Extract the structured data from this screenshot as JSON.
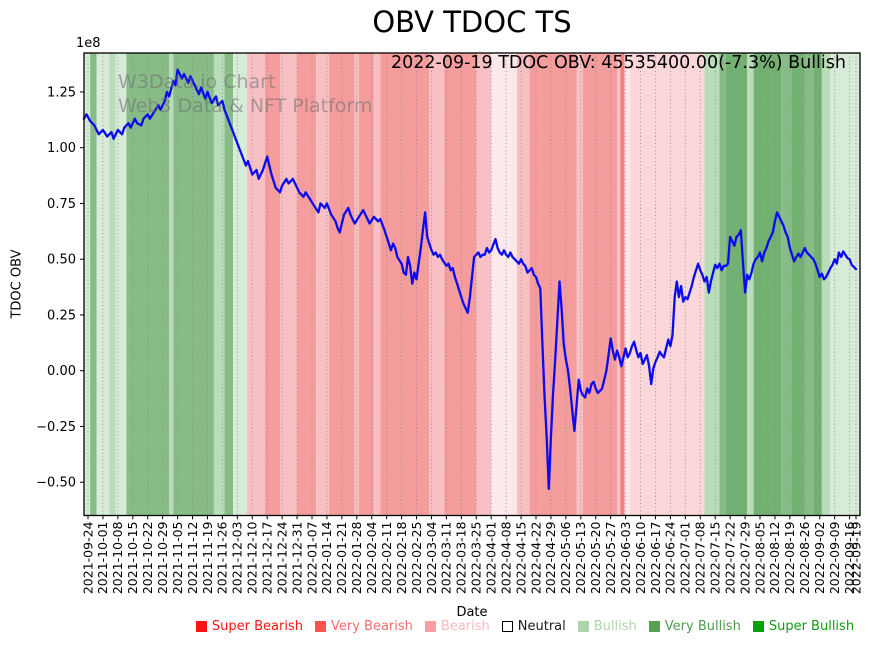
{
  "title": "OBV TDOC TS",
  "annotation": "2022-09-19 TDOC OBV: 45535400.00(-7.3%) Bullish",
  "watermark": {
    "line1": "W3Data.io Chart",
    "line2": "Web3 Data & NFT Platform"
  },
  "axes": {
    "y_label": "TDOC OBV",
    "x_label": "Date",
    "offset_text": "1e8",
    "y_ticks": {
      "labels": [
        "1.25",
        "1.00",
        "0.75",
        "0.50",
        "0.25",
        "0.00",
        "−0.25",
        "−0.50"
      ],
      "values": [
        1.25,
        1.0,
        0.75,
        0.5,
        0.25,
        0.0,
        -0.25,
        -0.5
      ]
    },
    "x_tick_labels": [
      "2021-09-24",
      "2021-10-01",
      "2021-10-08",
      "2021-10-15",
      "2021-10-22",
      "2021-10-29",
      "2021-11-05",
      "2021-11-12",
      "2021-11-19",
      "2021-11-26",
      "2021-12-03",
      "2021-12-10",
      "2021-12-17",
      "2021-12-24",
      "2021-12-31",
      "2022-01-07",
      "2022-01-14",
      "2022-01-21",
      "2022-01-28",
      "2022-02-04",
      "2022-02-11",
      "2022-02-18",
      "2022-02-25",
      "2022-03-04",
      "2022-03-11",
      "2022-03-18",
      "2022-03-25",
      "2022-04-01",
      "2022-04-08",
      "2022-04-15",
      "2022-04-22",
      "2022-04-29",
      "2022-05-06",
      "2022-05-13",
      "2022-05-20",
      "2022-05-27",
      "2022-06-03",
      "2022-06-10",
      "2022-06-17",
      "2022-06-24",
      "2022-07-01",
      "2022-07-08",
      "2022-07-15",
      "2022-07-22",
      "2022-07-29",
      "2022-08-05",
      "2022-08-12",
      "2022-08-19",
      "2022-08-26",
      "2022-09-02",
      "2022-09-09",
      "2022-09-16",
      "2022-09-19"
    ]
  },
  "legend": {
    "items": [
      {
        "label": "Super Bearish",
        "swatch": "#f71414",
        "text_color": "#f71414",
        "outlined": false
      },
      {
        "label": "Very Bearish",
        "swatch": "#fb5252",
        "text_color": "#fb6a6a",
        "outlined": false
      },
      {
        "label": "Bearish",
        "swatch": "#fa9ea4",
        "text_color": "#fbb8bd",
        "outlined": false
      },
      {
        "label": "Neutral",
        "swatch": "#ffffff",
        "text_color": "#1a1a1a",
        "outlined": true
      },
      {
        "label": "Bullish",
        "swatch": "#abd6ab",
        "text_color": "#abd6ab",
        "outlined": false
      },
      {
        "label": "Very Bullish",
        "swatch": "#55a155",
        "text_color": "#4d9d4d",
        "outlined": false
      },
      {
        "label": "Super Bullish",
        "swatch": "#0aa00a",
        "text_color": "#0f9f0f",
        "outlined": false
      }
    ]
  },
  "colors": {
    "line": "#0b0bef",
    "grid": "#888888",
    "spine": "#000000",
    "watermark": "#6e6e6e"
  },
  "chart_data": {
    "type": "line",
    "title": "OBV TDOC TS",
    "xlabel": "Date",
    "ylabel": "TDOC OBV",
    "y_unit": "1e8",
    "ylim": [
      -0.647,
      1.425
    ],
    "x_range": [
      "2021-09-24",
      "2022-09-19"
    ],
    "grid": "vertical-dotted-weekly",
    "legend_position": "bottom-center",
    "last_point": {
      "date": "2022-09-19",
      "obv": 45535400.0,
      "change_pct": -7.3,
      "signal": "Bullish"
    },
    "series": [
      {
        "name": "TDOC OBV",
        "x_days_from_2021_09_24": [
          -1.9,
          -0.7,
          1,
          3,
          5,
          7,
          9,
          11,
          12,
          14,
          16,
          17,
          19,
          20,
          22,
          23,
          25,
          26,
          28,
          29,
          31,
          33,
          34,
          36,
          37,
          38,
          40,
          41,
          42,
          44,
          45,
          47,
          48,
          50,
          52,
          53,
          55,
          56,
          58,
          60,
          61,
          63,
          64,
          66,
          68,
          70,
          72,
          74,
          75,
          77,
          79,
          80,
          82,
          84,
          85,
          86,
          88,
          90,
          91,
          93,
          94,
          96,
          98,
          99,
          101,
          102,
          104,
          106,
          108,
          109,
          111,
          112,
          114,
          116,
          117,
          118,
          120,
          122,
          123,
          125,
          127,
          129,
          131,
          132,
          134,
          136,
          137,
          139,
          140,
          141,
          142,
          143,
          144,
          145,
          147,
          148,
          149,
          150,
          151,
          152,
          153,
          154,
          156,
          157,
          158,
          159,
          160,
          161,
          162,
          163,
          164,
          165,
          166,
          168,
          169,
          170,
          171,
          172,
          173,
          174,
          175,
          176,
          177,
          178,
          179,
          180,
          181,
          182,
          183,
          184,
          185,
          186,
          187,
          188,
          189,
          190,
          191,
          192,
          193,
          194,
          195,
          196,
          197,
          198,
          199,
          200,
          201,
          202,
          203,
          204,
          205,
          206,
          207,
          208,
          209,
          210,
          211,
          212,
          213,
          214,
          215,
          216,
          217,
          218,
          219,
          220,
          221,
          222,
          223,
          224,
          225,
          226,
          227,
          228,
          229,
          230,
          231,
          232,
          233,
          234,
          235,
          236,
          237,
          238,
          239,
          240,
          241,
          242,
          243,
          244,
          245,
          246,
          247,
          248,
          249,
          250,
          251,
          252,
          253,
          254,
          255,
          256,
          257,
          258,
          259,
          260,
          261,
          262,
          263,
          264,
          265,
          266,
          267,
          268,
          269,
          270,
          271,
          272,
          273,
          274,
          275,
          276,
          277,
          278,
          279,
          280,
          281,
          282,
          283,
          284,
          285,
          286,
          287,
          288,
          289,
          290,
          291,
          292,
          293,
          294,
          295,
          296,
          297,
          298,
          299,
          300,
          301,
          302,
          303,
          304,
          305,
          306,
          307,
          308,
          309,
          310,
          311,
          312,
          313,
          314,
          315,
          316,
          317,
          318,
          319,
          320,
          321,
          322,
          323,
          324,
          325,
          326,
          327,
          328,
          329,
          330,
          331,
          332,
          333,
          334,
          335,
          336,
          337,
          338,
          339,
          340,
          341,
          342,
          343,
          344,
          345,
          346,
          347,
          348,
          349,
          350,
          351,
          352,
          353,
          354,
          355,
          356,
          357,
          358,
          359,
          360
        ],
        "values_1e8": [
          1.13,
          1.15,
          1.12,
          1.1,
          1.06,
          1.08,
          1.05,
          1.07,
          1.04,
          1.08,
          1.06,
          1.09,
          1.11,
          1.09,
          1.13,
          1.11,
          1.1,
          1.13,
          1.15,
          1.13,
          1.16,
          1.19,
          1.17,
          1.21,
          1.25,
          1.23,
          1.3,
          1.28,
          1.35,
          1.31,
          1.33,
          1.29,
          1.32,
          1.28,
          1.24,
          1.27,
          1.22,
          1.25,
          1.2,
          1.23,
          1.19,
          1.21,
          1.17,
          1.12,
          1.07,
          1.02,
          0.97,
          0.92,
          0.94,
          0.88,
          0.9,
          0.86,
          0.9,
          0.96,
          0.92,
          0.88,
          0.82,
          0.8,
          0.83,
          0.86,
          0.84,
          0.86,
          0.82,
          0.8,
          0.78,
          0.8,
          0.77,
          0.74,
          0.71,
          0.75,
          0.73,
          0.75,
          0.7,
          0.67,
          0.64,
          0.62,
          0.7,
          0.73,
          0.7,
          0.66,
          0.69,
          0.72,
          0.68,
          0.66,
          0.69,
          0.67,
          0.68,
          0.63,
          0.6,
          0.57,
          0.54,
          0.57,
          0.55,
          0.51,
          0.48,
          0.44,
          0.43,
          0.51,
          0.47,
          0.39,
          0.44,
          0.41,
          0.55,
          0.63,
          0.71,
          0.6,
          0.57,
          0.54,
          0.52,
          0.53,
          0.51,
          0.52,
          0.5,
          0.47,
          0.48,
          0.45,
          0.46,
          0.42,
          0.39,
          0.36,
          0.33,
          0.3,
          0.28,
          0.26,
          0.33,
          0.42,
          0.51,
          0.52,
          0.53,
          0.51,
          0.52,
          0.52,
          0.55,
          0.53,
          0.54,
          0.565,
          0.59,
          0.55,
          0.53,
          0.52,
          0.54,
          0.52,
          0.51,
          0.53,
          0.51,
          0.5,
          0.49,
          0.48,
          0.5,
          0.48,
          0.47,
          0.44,
          0.45,
          0.46,
          0.43,
          0.42,
          0.39,
          0.37,
          0.12,
          -0.11,
          -0.3,
          -0.53,
          -0.3,
          -0.1,
          0.05,
          0.22,
          0.4,
          0.28,
          0.12,
          0.05,
          0.0,
          -0.08,
          -0.18,
          -0.27,
          -0.16,
          -0.04,
          -0.09,
          -0.11,
          -0.12,
          -0.08,
          -0.1,
          -0.06,
          -0.05,
          -0.08,
          -0.1,
          -0.09,
          -0.08,
          -0.04,
          0.0,
          0.07,
          0.145,
          0.09,
          0.05,
          0.09,
          0.06,
          0.02,
          0.06,
          0.1,
          0.06,
          0.08,
          0.11,
          0.13,
          0.09,
          0.06,
          0.08,
          0.03,
          0.05,
          0.07,
          0.02,
          -0.06,
          0.01,
          0.04,
          0.06,
          0.085,
          0.07,
          0.06,
          0.1,
          0.14,
          0.11,
          0.16,
          0.33,
          0.4,
          0.33,
          0.38,
          0.31,
          0.33,
          0.32,
          0.35,
          0.38,
          0.42,
          0.45,
          0.48,
          0.45,
          0.43,
          0.4,
          0.42,
          0.35,
          0.4,
          0.44,
          0.475,
          0.46,
          0.48,
          0.45,
          0.47,
          0.47,
          0.48,
          0.6,
          0.58,
          0.56,
          0.6,
          0.61,
          0.63,
          0.49,
          0.35,
          0.43,
          0.41,
          0.44,
          0.48,
          0.5,
          0.51,
          0.53,
          0.49,
          0.53,
          0.55,
          0.58,
          0.6,
          0.62,
          0.67,
          0.71,
          0.69,
          0.67,
          0.65,
          0.62,
          0.6,
          0.55,
          0.52,
          0.49,
          0.51,
          0.525,
          0.51,
          0.53,
          0.55,
          0.53,
          0.52,
          0.51,
          0.5,
          0.48,
          0.45,
          0.42,
          0.435,
          0.41,
          0.42,
          0.44,
          0.46,
          0.475,
          0.5,
          0.48,
          0.53,
          0.51,
          0.535,
          0.52,
          0.505,
          0.5,
          0.475,
          0.465,
          0.455
        ]
      }
    ],
    "band_levels": {
      "super_bearish": "#f2807f",
      "very_bearish": "#f59c9c",
      "bearish": "#f8c0c4",
      "bearish_pale": "#fbd7da",
      "bearish_faint": "#fde9eb",
      "bullish_pale": "#d8ebd8",
      "bullish": "#b9dcb9",
      "very_bullish": "#87bc87",
      "super_bullish": "#72b172"
    },
    "bands": [
      {
        "from": -2,
        "to": 1,
        "level": "bullish_pale"
      },
      {
        "from": 1,
        "to": 4,
        "level": "very_bullish"
      },
      {
        "from": 4,
        "to": 10,
        "level": "bullish_pale"
      },
      {
        "from": 10,
        "to": 13,
        "level": "bullish"
      },
      {
        "from": 13,
        "to": 18,
        "level": "bullish_pale"
      },
      {
        "from": 18,
        "to": 38,
        "level": "very_bullish"
      },
      {
        "from": 38,
        "to": 40,
        "level": "bullish"
      },
      {
        "from": 40,
        "to": 59,
        "level": "very_bullish"
      },
      {
        "from": 59,
        "to": 64,
        "level": "bullish"
      },
      {
        "from": 64,
        "to": 68,
        "level": "very_bullish"
      },
      {
        "from": 68,
        "to": 74.5,
        "level": "bullish_pale"
      },
      {
        "from": 74.5,
        "to": 83,
        "level": "bearish"
      },
      {
        "from": 83,
        "to": 90,
        "level": "very_bearish"
      },
      {
        "from": 90,
        "to": 98,
        "level": "bearish"
      },
      {
        "from": 98,
        "to": 107,
        "level": "very_bearish"
      },
      {
        "from": 107,
        "to": 113,
        "level": "bearish"
      },
      {
        "from": 113,
        "to": 125,
        "level": "very_bearish"
      },
      {
        "from": 125,
        "to": 127,
        "level": "bearish"
      },
      {
        "from": 127,
        "to": 134,
        "level": "very_bearish"
      },
      {
        "from": 134,
        "to": 137,
        "level": "bearish"
      },
      {
        "from": 137,
        "to": 160,
        "level": "very_bearish"
      },
      {
        "from": 160,
        "to": 167,
        "level": "bearish"
      },
      {
        "from": 167,
        "to": 182,
        "level": "very_bearish"
      },
      {
        "from": 182,
        "to": 189,
        "level": "bearish"
      },
      {
        "from": 189,
        "to": 201,
        "level": "bearish_faint"
      },
      {
        "from": 201,
        "to": 207,
        "level": "bearish"
      },
      {
        "from": 207,
        "to": 229,
        "level": "very_bearish"
      },
      {
        "from": 229,
        "to": 232,
        "level": "bearish"
      },
      {
        "from": 232,
        "to": 248,
        "level": "very_bearish"
      },
      {
        "from": 248,
        "to": 249.5,
        "level": "bearish"
      },
      {
        "from": 249.5,
        "to": 251.5,
        "level": "super_bearish"
      },
      {
        "from": 251.5,
        "to": 254,
        "level": "bearish_faint"
      },
      {
        "from": 254,
        "to": 289,
        "level": "bearish_pale"
      },
      {
        "from": 289,
        "to": 296,
        "level": "bullish"
      },
      {
        "from": 296,
        "to": 299,
        "level": "very_bullish"
      },
      {
        "from": 299,
        "to": 309,
        "level": "super_bullish"
      },
      {
        "from": 309,
        "to": 312,
        "level": "bullish"
      },
      {
        "from": 312,
        "to": 325,
        "level": "super_bullish"
      },
      {
        "from": 325,
        "to": 330,
        "level": "very_bullish"
      },
      {
        "from": 330,
        "to": 336,
        "level": "super_bullish"
      },
      {
        "from": 336,
        "to": 340,
        "level": "very_bullish"
      },
      {
        "from": 340,
        "to": 344,
        "level": "super_bullish"
      },
      {
        "from": 344,
        "to": 348,
        "level": "bullish"
      },
      {
        "from": 348,
        "to": 362,
        "level": "bullish_pale"
      }
    ]
  }
}
